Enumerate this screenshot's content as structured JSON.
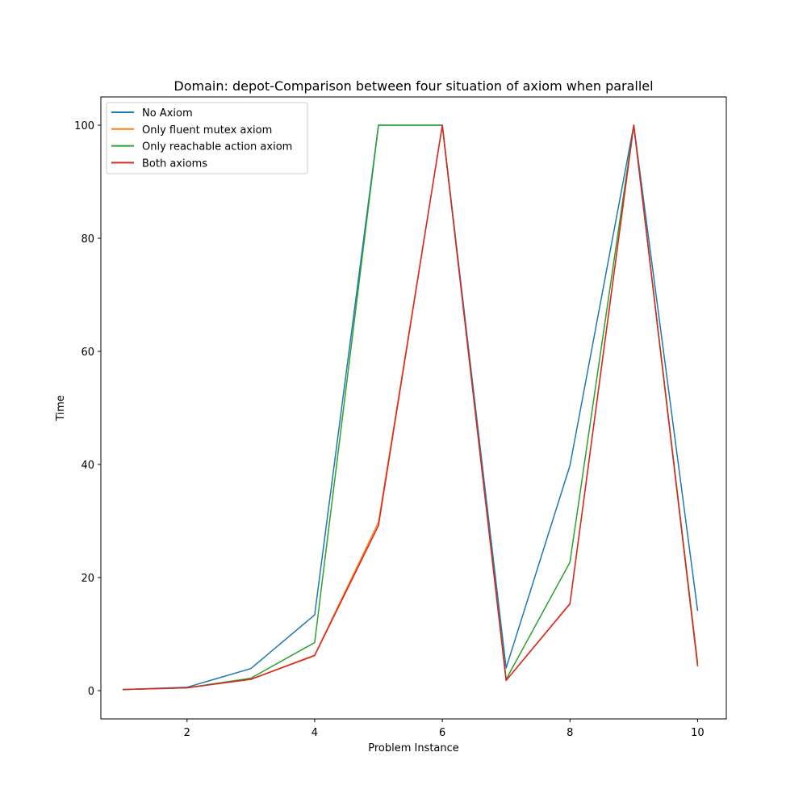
{
  "chart_data": {
    "type": "line",
    "title": "Domain: depot-Comparison between four situation of axiom when parallel",
    "xlabel": "Problem Instance",
    "ylabel": "Time",
    "xlim": [
      0.65,
      10.45
    ],
    "ylim": [
      -5,
      105
    ],
    "xticks": [
      2,
      4,
      6,
      8,
      10
    ],
    "yticks": [
      0,
      20,
      40,
      60,
      80,
      100
    ],
    "grid": false,
    "legend_position": "top-left",
    "x": [
      1,
      2,
      3,
      4,
      5,
      6,
      7,
      8,
      9,
      10
    ],
    "series": [
      {
        "name": "No Axiom",
        "color": "#1f77b4",
        "values": [
          0.2,
          0.6,
          3.9,
          13.4,
          100,
          100,
          4.0,
          39.8,
          100,
          14.2
        ]
      },
      {
        "name": "Only fluent mutex axiom",
        "color": "#ff7f0e",
        "values": [
          0.2,
          0.5,
          2.0,
          6.3,
          29.8,
          100,
          1.8,
          15.3,
          100,
          5.0
        ]
      },
      {
        "name": "Only reachable action axiom",
        "color": "#2ca02c",
        "values": [
          0.2,
          0.5,
          2.2,
          8.5,
          100,
          100,
          2.0,
          22.7,
          100,
          4.8
        ]
      },
      {
        "name": "Both axioms",
        "color": "#d62728",
        "values": [
          0.2,
          0.5,
          2.0,
          6.2,
          29.2,
          100,
          1.8,
          15.4,
          100,
          4.4
        ]
      }
    ]
  }
}
